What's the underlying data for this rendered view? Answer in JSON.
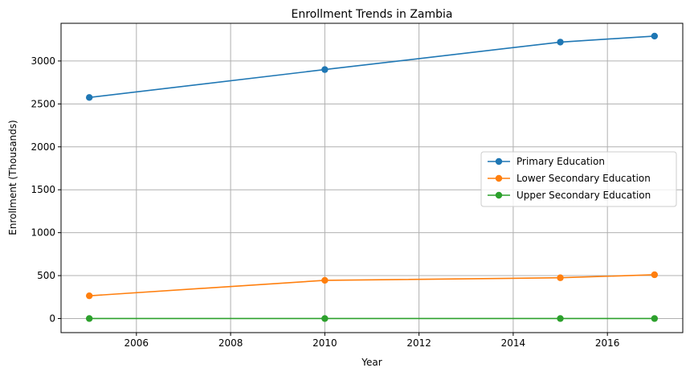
{
  "chart_data": {
    "type": "line",
    "title": "Enrollment Trends in Zambia",
    "xlabel": "Year",
    "ylabel": "Enrollment (Thousands)",
    "x": [
      2005,
      2010,
      2015,
      2017
    ],
    "xlim": [
      2004.4,
      2017.6
    ],
    "ylim": [
      -164,
      3439
    ],
    "xticks": [
      2006,
      2008,
      2010,
      2012,
      2014,
      2016
    ],
    "yticks": [
      0,
      500,
      1000,
      1500,
      2000,
      2500,
      3000
    ],
    "grid": true,
    "legend_position": "center-right",
    "series": [
      {
        "name": "Primary Education",
        "color": "#1f77b4",
        "values": [
          2575,
          2900,
          3220,
          3290
        ]
      },
      {
        "name": "Lower Secondary Education",
        "color": "#ff7f0e",
        "values": [
          265,
          445,
          475,
          510
        ]
      },
      {
        "name": "Upper Secondary Education",
        "color": "#2ca02c",
        "values": [
          0,
          0,
          0,
          0
        ]
      }
    ]
  }
}
